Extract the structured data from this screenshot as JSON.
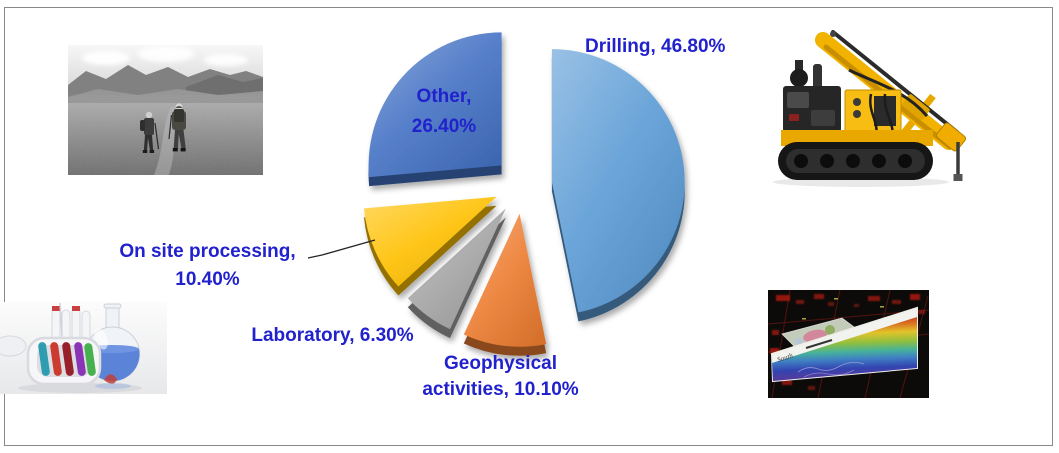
{
  "slide": {
    "background_color": "#ffffff",
    "border_color": "#898989"
  },
  "chart_data": {
    "type": "pie",
    "title": "",
    "unit": "%",
    "direction": "clockwise-from-top",
    "exploded": true,
    "legend": "none",
    "label_color": "#2121CD",
    "slices": [
      {
        "label": "Drilling",
        "value": 46.8,
        "color": "#5B9BD5"
      },
      {
        "label": "Geophysical activities",
        "value": 10.1,
        "color": "#ED7D31"
      },
      {
        "label": "Laboratory",
        "value": 6.3,
        "color": "#A5A5A5"
      },
      {
        "label": "On site processing",
        "value": 10.4,
        "color": "#FFC000"
      },
      {
        "label": "Other",
        "value": 26.4,
        "color": "#4472C4"
      }
    ]
  },
  "labels": {
    "drilling": "Drilling, 46.80%",
    "other": [
      "Other,",
      "26.40%"
    ],
    "on_site": [
      "On site processing,",
      "10.40%"
    ],
    "laboratory": "Laboratory, 6.30%",
    "geophysical": [
      "Geophysical",
      "activities, 10.10%"
    ]
  },
  "images": {
    "field_photo": {
      "alt": "two geologists hiking in a mountain valley, black and white photo"
    },
    "drill_rig": {
      "alt": "yellow crawler-mounted drilling rig"
    },
    "laboratory": {
      "alt": "test tube rack and flask with blue liquid"
    },
    "geophysical": {
      "alt": "3D geophysical cross-section on black background",
      "south_label": "South"
    }
  }
}
